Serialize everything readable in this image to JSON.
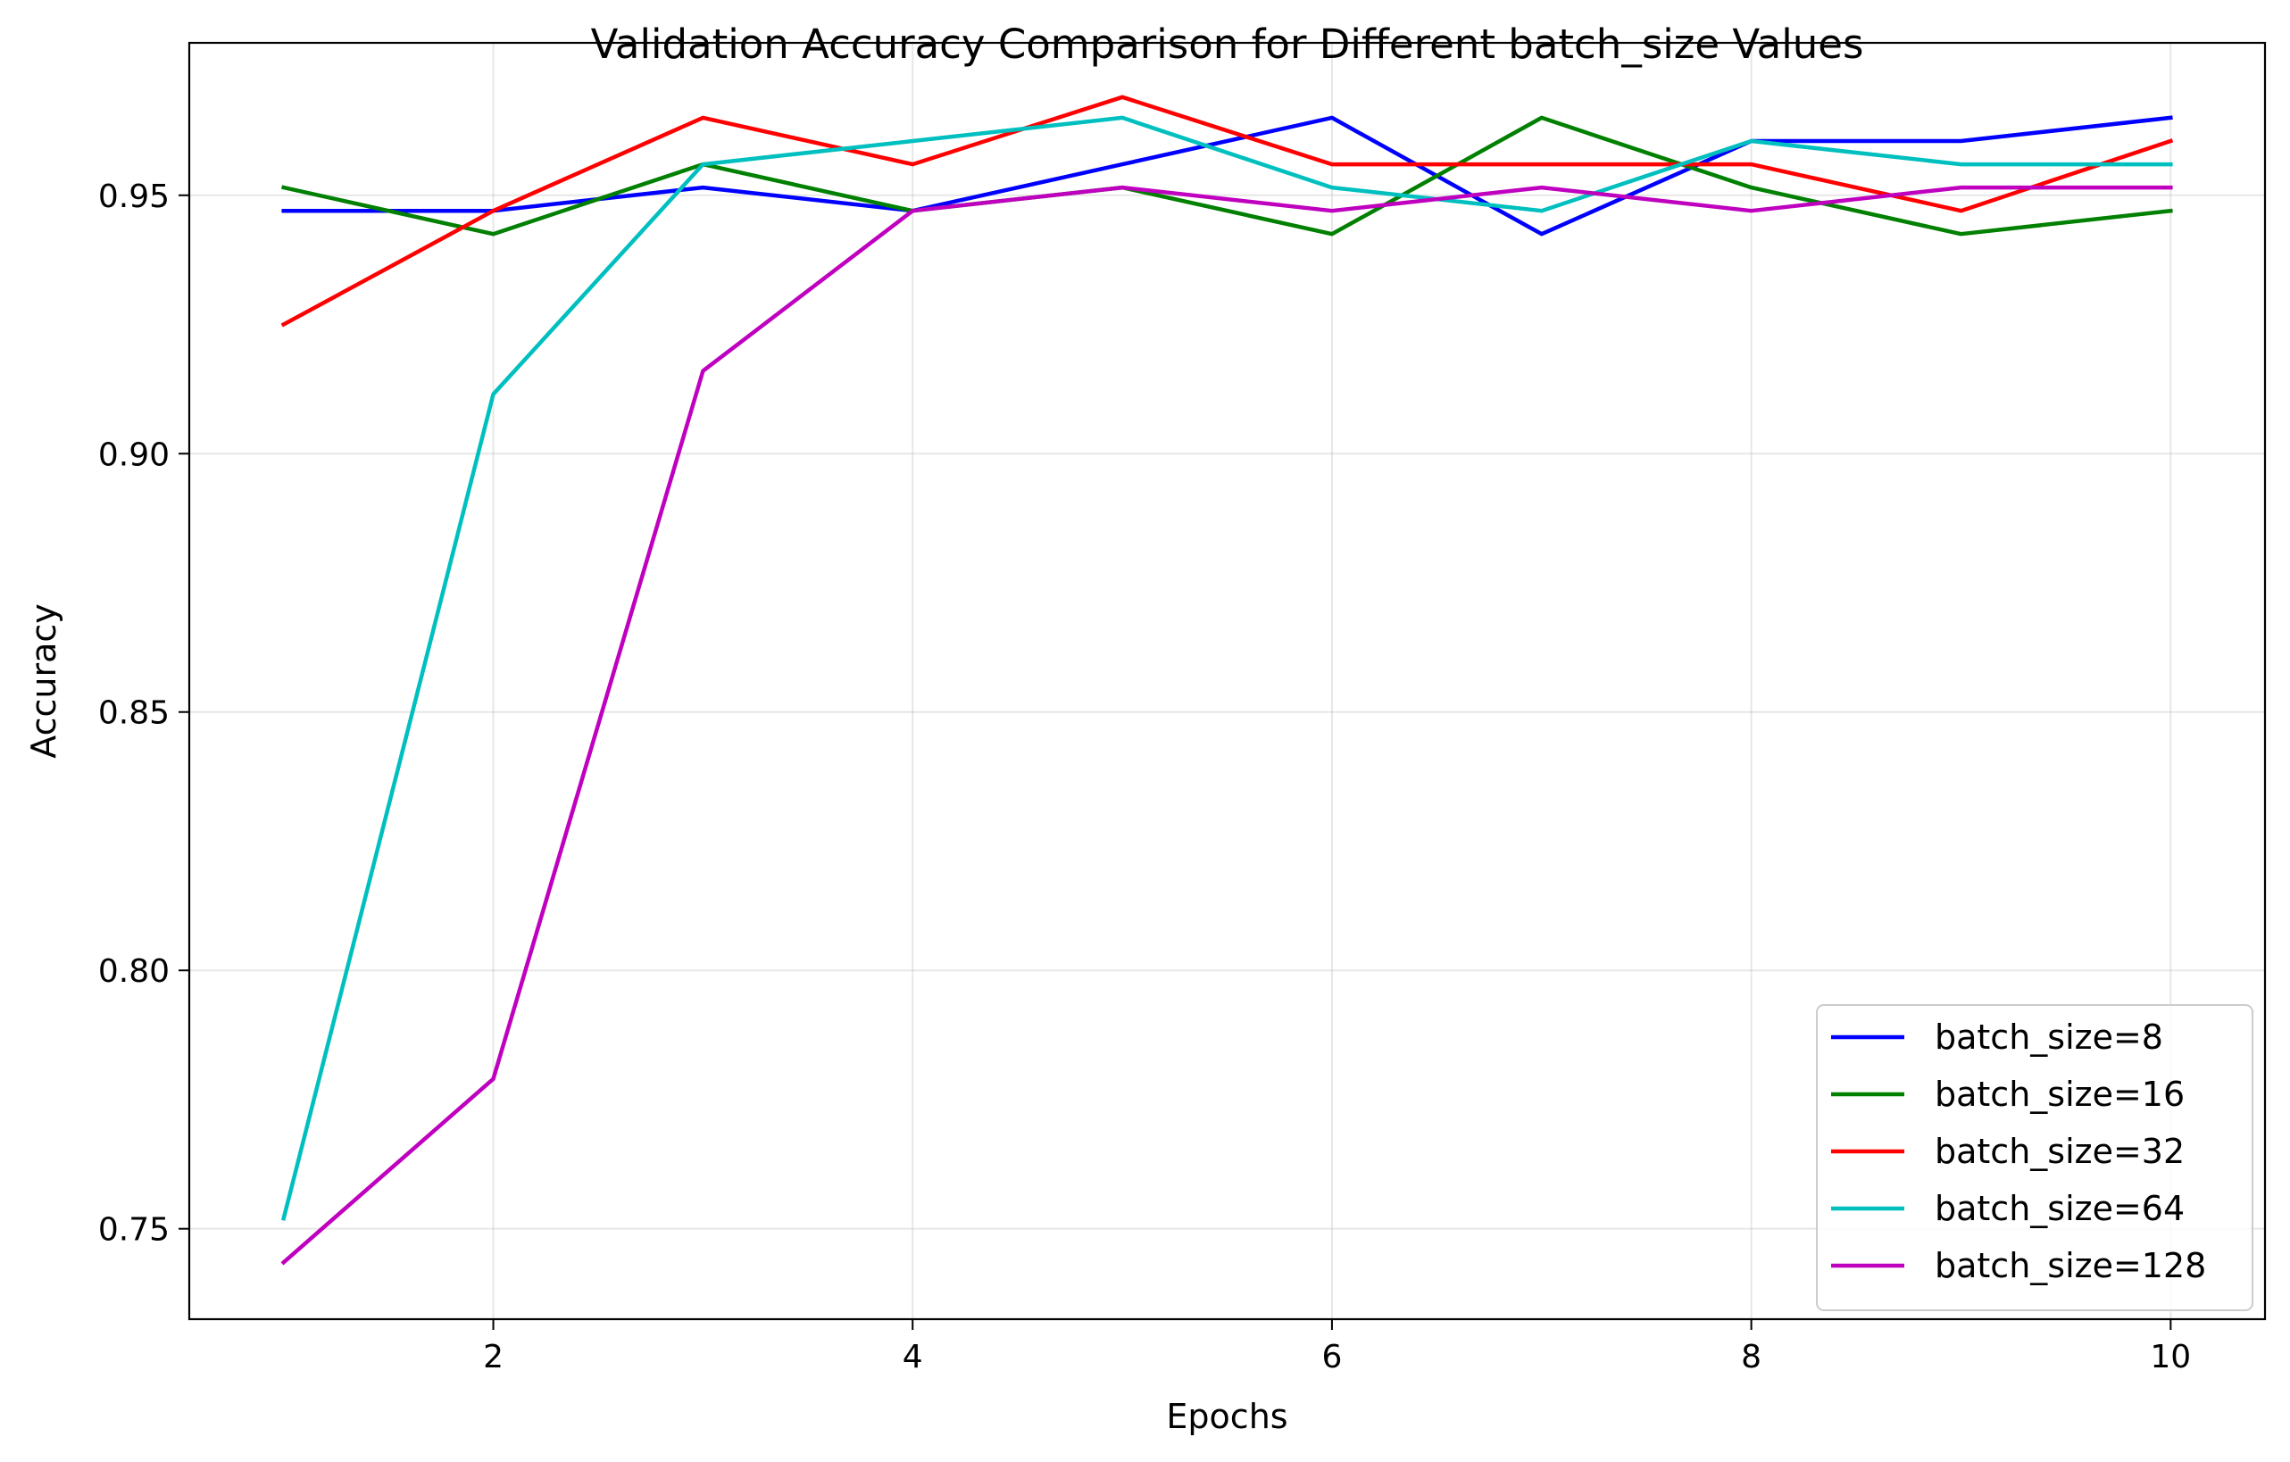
{
  "chart_data": {
    "type": "line",
    "title": "Validation Accuracy Comparison for Different batch_size Values",
    "xlabel": "Epochs",
    "ylabel": "Accuracy",
    "xlim": [
      0.55,
      10.45
    ],
    "ylim": [
      0.7325,
      0.9795
    ],
    "xticks": [
      2,
      4,
      6,
      8,
      10
    ],
    "xtick_labels": [
      "2",
      "4",
      "6",
      "8",
      "10"
    ],
    "yticks": [
      0.75,
      0.8,
      0.85,
      0.9,
      0.95
    ],
    "ytick_labels": [
      "0.75",
      "0.80",
      "0.85",
      "0.90",
      "0.95"
    ],
    "grid": true,
    "legend_position": "lower-right",
    "x": [
      1,
      2,
      3,
      4,
      5,
      6,
      7,
      8,
      9,
      10
    ],
    "series": [
      {
        "name": "batch_size=8",
        "color": "#0000ff",
        "values": [
          0.947,
          0.947,
          0.9515,
          0.947,
          0.956,
          0.965,
          0.9425,
          0.9605,
          0.9605,
          0.965
        ]
      },
      {
        "name": "batch_size=16",
        "color": "#008000",
        "values": [
          0.9515,
          0.9425,
          0.956,
          0.947,
          0.9515,
          0.9425,
          0.965,
          0.9515,
          0.9425,
          0.947
        ]
      },
      {
        "name": "batch_size=32",
        "color": "#ff0000",
        "values": [
          0.925,
          0.947,
          0.965,
          0.956,
          0.969,
          0.956,
          0.956,
          0.956,
          0.947,
          0.9605
        ]
      },
      {
        "name": "batch_size=64",
        "color": "#00bfbf",
        "values": [
          0.752,
          0.9115,
          0.956,
          0.9605,
          0.965,
          0.9515,
          0.947,
          0.9605,
          0.956,
          0.956
        ]
      },
      {
        "name": "batch_size=128",
        "color": "#bf00bf",
        "values": [
          0.7435,
          0.779,
          0.916,
          0.947,
          0.9515,
          0.947,
          0.9515,
          0.947,
          0.9515,
          0.9515
        ]
      }
    ]
  }
}
